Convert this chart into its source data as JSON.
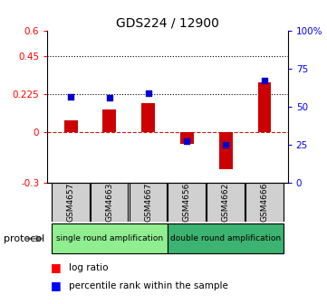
{
  "title": "GDS224 / 12900",
  "samples": [
    "GSM4657",
    "GSM4663",
    "GSM4667",
    "GSM4656",
    "GSM4662",
    "GSM4666"
  ],
  "log_ratio": [
    0.07,
    0.13,
    0.17,
    -0.07,
    -0.22,
    0.295
  ],
  "percentile_rank": [
    0.565,
    0.555,
    0.585,
    0.27,
    0.245,
    0.67
  ],
  "ylim_left": [
    -0.3,
    0.6
  ],
  "ylim_right": [
    0,
    1.0
  ],
  "yticks_left": [
    -0.3,
    0,
    0.225,
    0.45,
    0.6
  ],
  "ytick_labels_left": [
    "-0.3",
    "0",
    "0.225",
    "0.45",
    "0.6"
  ],
  "yticks_right": [
    0,
    0.25,
    0.5,
    0.75,
    1.0
  ],
  "ytick_labels_right": [
    "0",
    "25",
    "50",
    "75",
    "100%"
  ],
  "hlines_dotted": [
    0.225,
    0.45
  ],
  "protocol_groups": [
    {
      "label": "single round amplification",
      "start": 0,
      "end": 3,
      "color": "#90ee90"
    },
    {
      "label": "double round amplification",
      "start": 3,
      "end": 6,
      "color": "#3cb371"
    }
  ],
  "bar_color": "#cc0000",
  "dot_color": "#0000cc",
  "bar_width": 0.35,
  "dot_size": 25,
  "zero_line_color": "#cc0000",
  "box_color": "#d0d0d0",
  "protocol_label": "protocol"
}
